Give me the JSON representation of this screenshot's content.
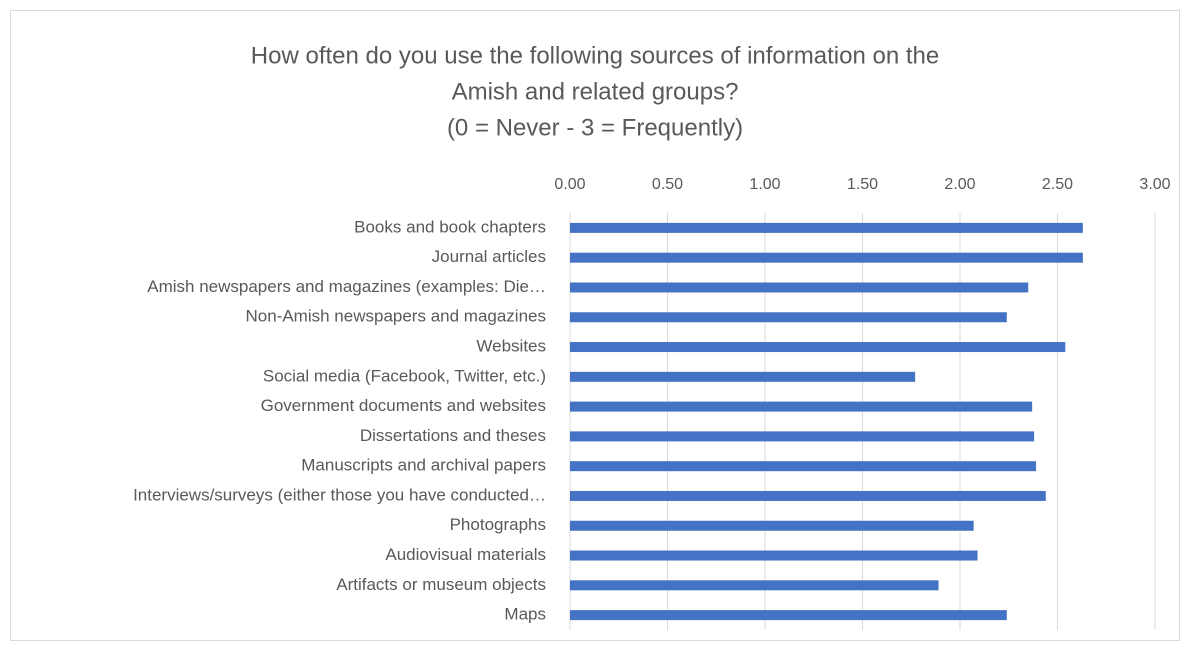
{
  "chart_data": {
    "type": "bar",
    "orientation": "horizontal",
    "title": [
      "How often do you use the following sources of information on the",
      "Amish and related groups?",
      "(0 = Never - 3 = Frequently)"
    ],
    "categories": [
      "Books and book chapters",
      "Journal articles",
      "Amish newspapers and magazines (examples: Die…",
      "Non-Amish newspapers and magazines",
      "Websites",
      "Social media (Facebook, Twitter, etc.)",
      "Government documents and websites",
      "Dissertations and theses",
      "Manuscripts and archival papers",
      "Interviews/surveys (either those you have conducted…",
      "Photographs",
      "Audiovisual materials",
      "Artifacts or museum objects",
      "Maps"
    ],
    "values": [
      2.63,
      2.63,
      2.35,
      2.24,
      2.54,
      1.77,
      2.37,
      2.38,
      2.39,
      2.44,
      2.07,
      2.09,
      1.89,
      2.24
    ],
    "color": "#4472c4",
    "xlim": [
      0,
      3
    ],
    "xticks": [
      {
        "value": 0,
        "label": "0.00"
      },
      {
        "value": 0.5,
        "label": "0.50"
      },
      {
        "value": 1,
        "label": "1.00"
      },
      {
        "value": 1.5,
        "label": "1.50"
      },
      {
        "value": 2,
        "label": "2.00"
      },
      {
        "value": 2.5,
        "label": "2.50"
      },
      {
        "value": 3,
        "label": "3.00"
      }
    ],
    "grid": true
  }
}
